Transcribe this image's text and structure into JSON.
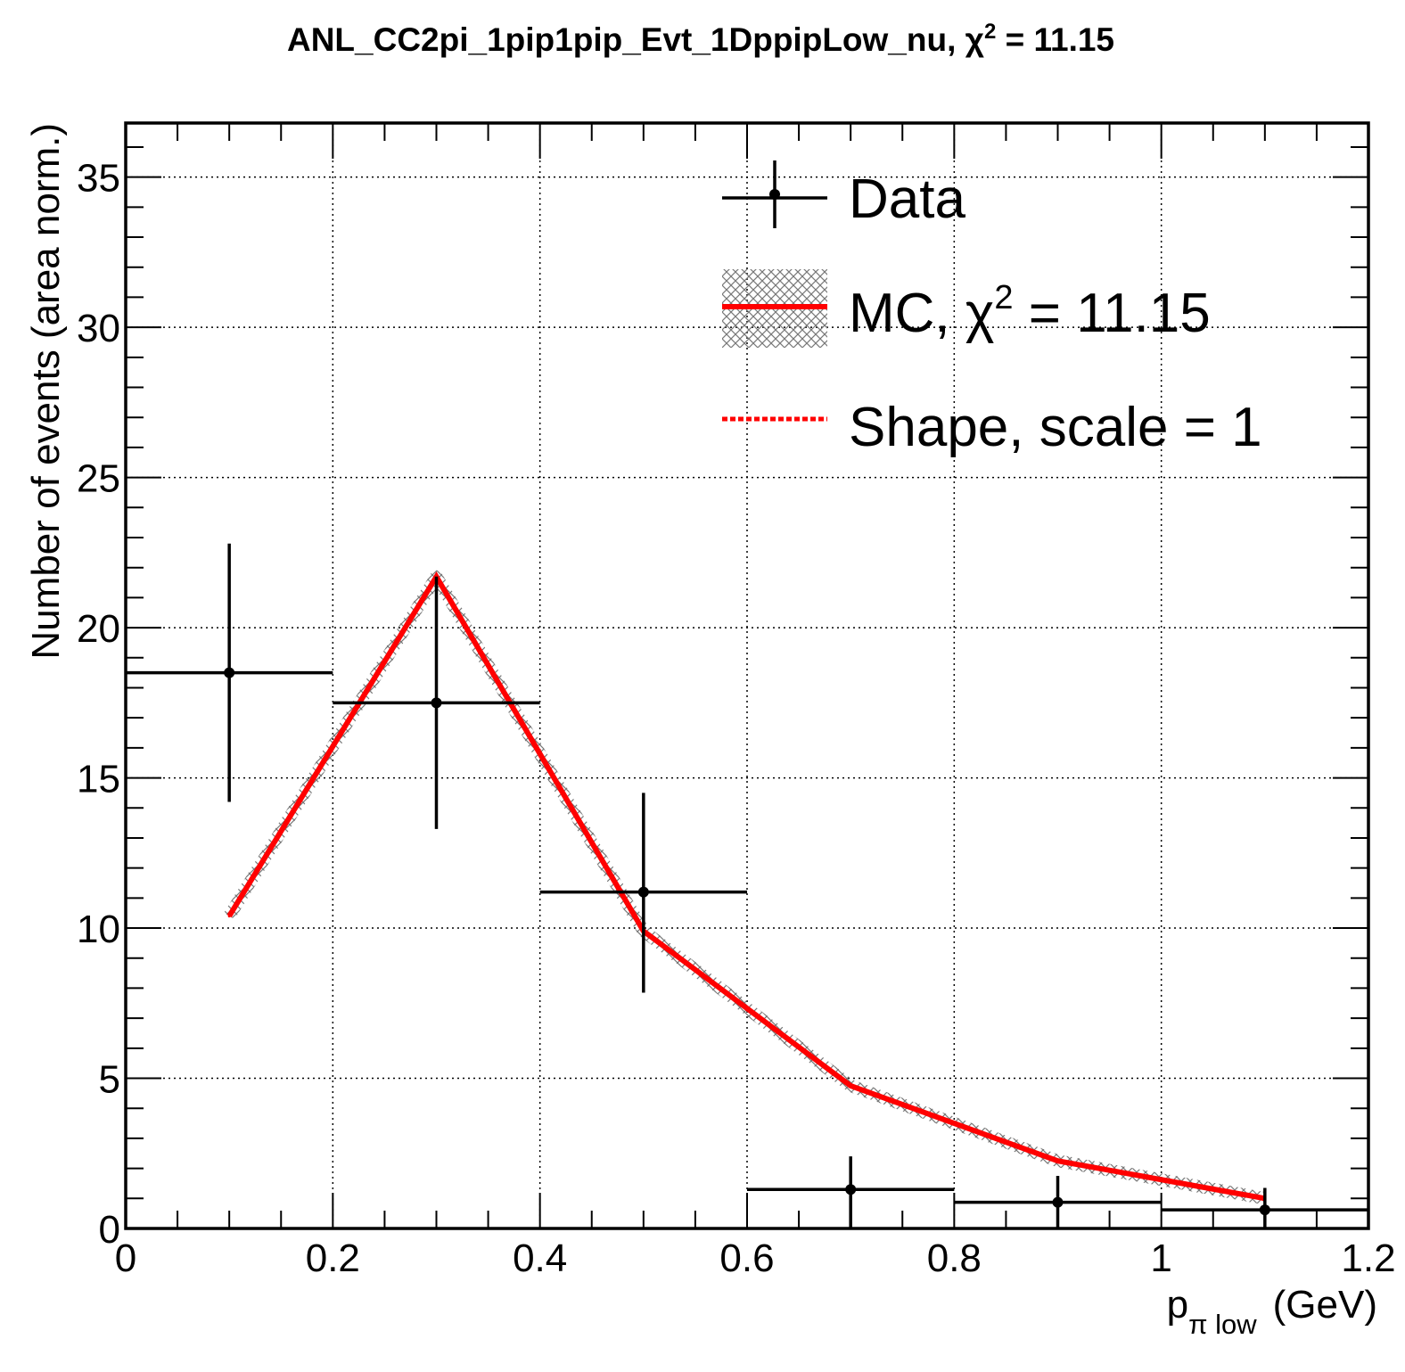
{
  "chart_data": {
    "type": "line",
    "title": "ANL_CC2pi_1pip1pip_Evt_1DppipLow_nu, χ² = 11.15",
    "title_parts": {
      "main": "ANL_CC2pi_1pip1pip_Evt_1DppipLow_nu, χ",
      "sup": "2",
      "tail": " = 11.15"
    },
    "xlabel_parts": {
      "main": "p",
      "sub": "π low",
      "unit": "(GeV)"
    },
    "ylabel": "Number of events (area norm.)",
    "xlim": [
      0,
      1.2
    ],
    "ylim": [
      0,
      36.8
    ],
    "grid": true,
    "x_ticks": [
      {
        "value": 0,
        "label": "0"
      },
      {
        "value": 0.2,
        "label": "0.2"
      },
      {
        "value": 0.4,
        "label": "0.4"
      },
      {
        "value": 0.6,
        "label": "0.6"
      },
      {
        "value": 0.8,
        "label": "0.8"
      },
      {
        "value": 1.0,
        "label": "1"
      },
      {
        "value": 1.2,
        "label": "1.2"
      }
    ],
    "y_ticks": [
      {
        "value": 0,
        "label": "0"
      },
      {
        "value": 5,
        "label": "5"
      },
      {
        "value": 10,
        "label": "10"
      },
      {
        "value": 15,
        "label": "15"
      },
      {
        "value": 20,
        "label": "20"
      },
      {
        "value": 25,
        "label": "25"
      },
      {
        "value": 30,
        "label": "30"
      },
      {
        "value": 35,
        "label": "35"
      }
    ],
    "legend": {
      "placement": "top-right",
      "entries": [
        {
          "label": "Data",
          "style": "errorbar"
        },
        {
          "label_main": "MC, χ",
          "label_sup": "2",
          "label_tail": " = 11.15",
          "style": "line-hatched"
        },
        {
          "label": "Shape, scale = 1",
          "style": "dashed"
        }
      ]
    },
    "series": [
      {
        "name": "Data",
        "kind": "errorbar",
        "color": "#000000",
        "points": [
          {
            "x": 0.1,
            "xlo": 0.0,
            "xhi": 0.2,
            "y": 18.5,
            "ylo": 14.2,
            "yhi": 22.8
          },
          {
            "x": 0.3,
            "xlo": 0.2,
            "xhi": 0.4,
            "y": 17.5,
            "ylo": 13.3,
            "yhi": 21.7
          },
          {
            "x": 0.5,
            "xlo": 0.4,
            "xhi": 0.6,
            "y": 11.2,
            "ylo": 7.85,
            "yhi": 14.5
          },
          {
            "x": 0.7,
            "xlo": 0.6,
            "xhi": 0.8,
            "y": 1.3,
            "ylo": 0.0,
            "yhi": 2.4
          },
          {
            "x": 0.9,
            "xlo": 0.8,
            "xhi": 1.0,
            "y": 0.87,
            "ylo": 0.0,
            "yhi": 1.75
          },
          {
            "x": 1.1,
            "xlo": 1.0,
            "xhi": 1.2,
            "y": 0.62,
            "ylo": 0.0,
            "yhi": 1.35
          }
        ]
      },
      {
        "name": "MC",
        "kind": "line",
        "color": "#ff0000",
        "x": [
          0.1,
          0.3,
          0.5,
          0.7,
          0.9,
          1.1
        ],
        "y": [
          10.4,
          21.7,
          9.9,
          4.75,
          2.25,
          1.0
        ]
      },
      {
        "name": "Shape",
        "kind": "dashed",
        "color": "#ff0000",
        "x": [
          0.1,
          0.3,
          0.5,
          0.7,
          0.9,
          1.1
        ],
        "y": [
          10.4,
          21.7,
          9.9,
          4.75,
          2.25,
          1.0
        ]
      }
    ]
  }
}
